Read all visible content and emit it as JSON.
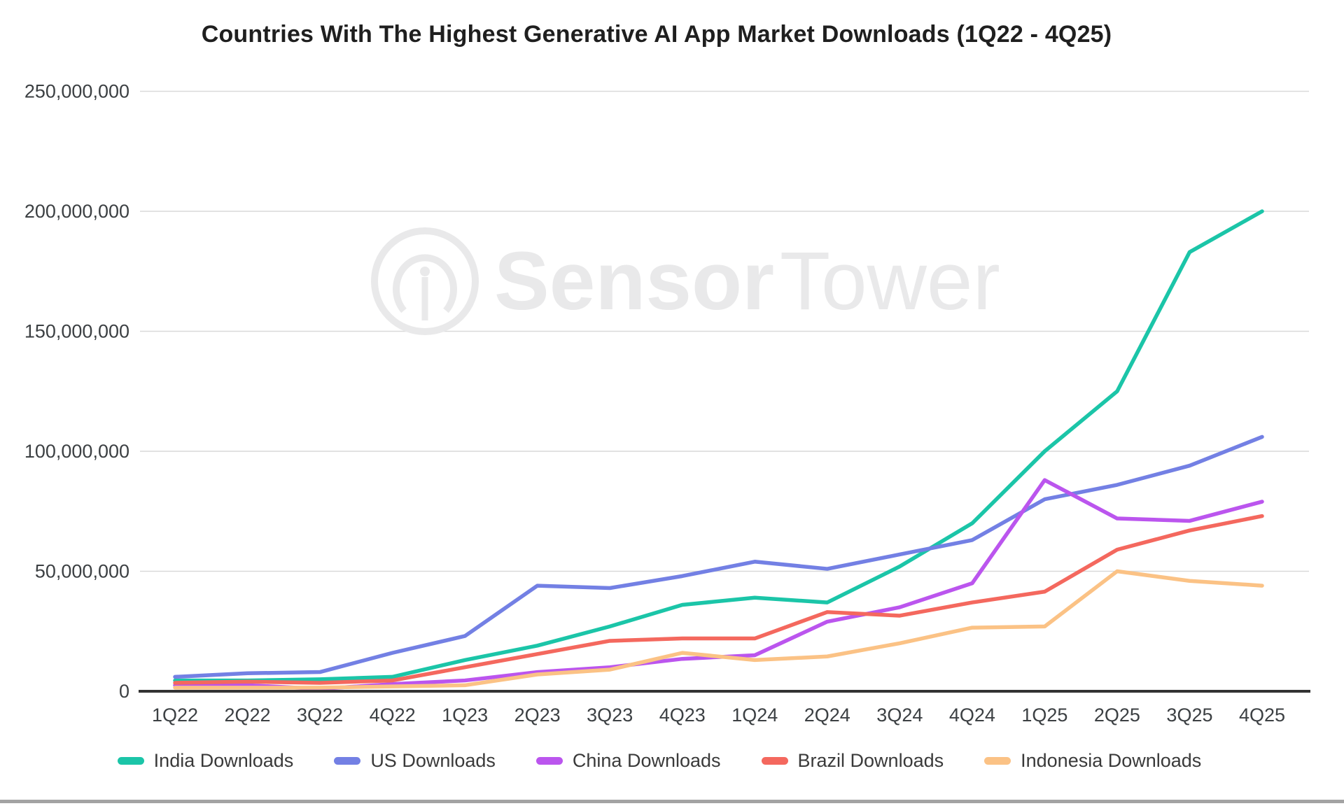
{
  "page": {
    "background": "#ffffff",
    "bottom_bar_color": "#a3a3a3"
  },
  "watermark": {
    "brand_bold": "Sensor",
    "brand_light": "Tower",
    "color": "#e9e9ea"
  },
  "axis_style": {
    "text_color": "#3c4043",
    "grid_color": "#d9d9d9",
    "axis_line_color": "#333333"
  },
  "y_ticks": [
    {
      "value": 0,
      "label": "0"
    },
    {
      "value": 50000000,
      "label": "50,000,000"
    },
    {
      "value": 100000000,
      "label": "100,000,000"
    },
    {
      "value": 150000000,
      "label": "150,000,000"
    },
    {
      "value": 200000000,
      "label": "200,000,000"
    },
    {
      "value": 250000000,
      "label": "250,000,000"
    }
  ],
  "chart_data": {
    "type": "line",
    "title": "Countries With The Highest Generative AI App Market Downloads (1Q22 - 4Q25)",
    "xlabel": "",
    "ylabel": "",
    "ylim": [
      0,
      250000000
    ],
    "grid": true,
    "legend_position": "bottom",
    "categories": [
      "1Q22",
      "2Q22",
      "3Q22",
      "4Q22",
      "1Q23",
      "2Q23",
      "3Q23",
      "4Q23",
      "1Q24",
      "2Q24",
      "3Q24",
      "4Q24",
      "1Q25",
      "2Q25",
      "3Q25",
      "4Q25"
    ],
    "series": [
      {
        "name": "India Downloads",
        "color": "#1bc5a8",
        "values": [
          4500000,
          4500000,
          5000000,
          6000000,
          13000000,
          19000000,
          27000000,
          36000000,
          39000000,
          37000000,
          52000000,
          70000000,
          100000000,
          125000000,
          183000000,
          200000000
        ]
      },
      {
        "name": "US Downloads",
        "color": "#7380e4",
        "values": [
          6000000,
          7500000,
          8000000,
          16000000,
          23000000,
          44000000,
          43000000,
          48000000,
          54000000,
          51000000,
          57000000,
          63000000,
          80000000,
          86000000,
          94000000,
          106000000
        ]
      },
      {
        "name": "China Downloads",
        "color": "#bb55ee",
        "values": [
          2500000,
          2500000,
          1000000,
          3000000,
          4500000,
          8000000,
          10000000,
          13500000,
          15000000,
          29000000,
          35000000,
          45000000,
          88000000,
          72000000,
          71000000,
          79000000
        ]
      },
      {
        "name": "Brazil Downloads",
        "color": "#f4685e",
        "values": [
          3500000,
          4000000,
          3500000,
          4500000,
          10000000,
          15500000,
          21000000,
          22000000,
          22000000,
          33000000,
          31500000,
          37000000,
          41500000,
          59000000,
          67000000,
          73000000
        ]
      },
      {
        "name": "Indonesia Downloads",
        "color": "#fbc285",
        "values": [
          1500000,
          1500000,
          1500000,
          2000000,
          2500000,
          7000000,
          9000000,
          16000000,
          13000000,
          14500000,
          20000000,
          26500000,
          27000000,
          50000000,
          46000000,
          44000000
        ]
      }
    ]
  }
}
